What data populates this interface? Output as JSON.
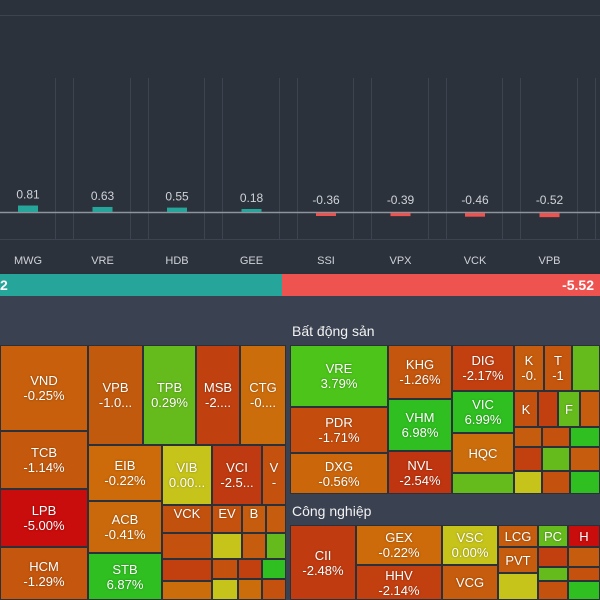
{
  "chart_data": {
    "type": "bar",
    "categories": [
      "MWG",
      "VRE",
      "HDB",
      "GEE",
      "SSI",
      "VPX",
      "VCK",
      "VPB"
    ],
    "values": [
      0.81,
      0.63,
      0.55,
      0.18,
      -0.36,
      -0.39,
      -0.46,
      -0.52
    ],
    "value_labels": [
      "0.81",
      "0.63",
      "0.55",
      "0.18",
      "-0.36",
      "-0.39",
      "-0.46",
      "-0.52"
    ],
    "title": "",
    "xlabel": "",
    "ylabel": ""
  },
  "impact_bar": {
    "positive_label": "2",
    "negative_label": "-5.52"
  },
  "colors": {
    "positive": "#26a69a",
    "negative": "#ef5350"
  },
  "sectors": {
    "left": {
      "title": ""
    },
    "real_estate": {
      "title": "Bất động sản"
    },
    "industrial": {
      "title": "Công nghiệp"
    }
  },
  "tiles": [
    {
      "sym": "VND",
      "chg": "-0.25%",
      "color": "#c75f0c"
    },
    {
      "sym": "VPB",
      "chg": "-1.0...",
      "color": "#c25a0e"
    },
    {
      "sym": "TPB",
      "chg": "0.29%",
      "color": "#66bb1c"
    },
    {
      "sym": "MSB",
      "chg": "-2....",
      "color": "#c04010"
    },
    {
      "sym": "CTG",
      "chg": "-0....",
      "color": "#cc6d0c"
    },
    {
      "sym": "TCB",
      "chg": "-1.14%",
      "color": "#c4590d"
    },
    {
      "sym": "EIB",
      "chg": "-0.22%",
      "color": "#cd6a0a"
    },
    {
      "sym": "VIB",
      "chg": "0.00...",
      "color": "#c6c41a"
    },
    {
      "sym": "VCI",
      "chg": "-2.5...",
      "color": "#bf3a10"
    },
    {
      "sym": "V",
      "chg": "-",
      "color": "#c4520e"
    },
    {
      "sym": "LPB",
      "chg": "-5.00%",
      "color": "#c90c0c"
    },
    {
      "sym": "ACB",
      "chg": "-0.41%",
      "color": "#ca690b"
    },
    {
      "sym": "VCK",
      "chg": "",
      "color": "#c2510e"
    },
    {
      "sym": "EV",
      "chg": "",
      "color": "#c4520e"
    },
    {
      "sym": "B",
      "chg": "",
      "color": "#c65c0d"
    },
    {
      "sym": "HCM",
      "chg": "-1.29%",
      "color": "#c4560d"
    },
    {
      "sym": "STB",
      "chg": "6.87%",
      "color": "#2fbf20"
    },
    {
      "sym": "VRE",
      "chg": "3.79%",
      "color": "#4cc41a"
    },
    {
      "sym": "KHG",
      "chg": "-1.26%",
      "color": "#c4560d"
    },
    {
      "sym": "DIG",
      "chg": "-2.17%",
      "color": "#c23f10"
    },
    {
      "sym": "K",
      "chg": "-0.",
      "color": "#c65c0d"
    },
    {
      "sym": "T",
      "chg": "-1",
      "color": "#c4560d"
    },
    {
      "sym": "PDR",
      "chg": "-1.71%",
      "color": "#c44d0e"
    },
    {
      "sym": "VHM",
      "chg": "6.98%",
      "color": "#2fbf20"
    },
    {
      "sym": "VIC",
      "chg": "6.99%",
      "color": "#2fbf20"
    },
    {
      "sym": "K",
      "chg": "",
      "color": "#c4520e"
    },
    {
      "sym": "F",
      "chg": "",
      "color": "#66bb1c"
    },
    {
      "sym": "DXG",
      "chg": "-0.56%",
      "color": "#cc660b"
    },
    {
      "sym": "NVL",
      "chg": "-2.54%",
      "color": "#bf3510"
    },
    {
      "sym": "HQC",
      "chg": "",
      "color": "#cc6d0c"
    },
    {
      "sym": "CII",
      "chg": "-2.48%",
      "color": "#c03b10"
    },
    {
      "sym": "GEX",
      "chg": "-0.22%",
      "color": "#cd6a0a"
    },
    {
      "sym": "VSC",
      "chg": "0.00%",
      "color": "#c6c41a"
    },
    {
      "sym": "LCG",
      "chg": "",
      "color": "#c65c0d"
    },
    {
      "sym": "PC",
      "chg": "",
      "color": "#66bb1c"
    },
    {
      "sym": "H",
      "chg": "",
      "color": "#c90c0c"
    },
    {
      "sym": "HHV",
      "chg": "-2.14%",
      "color": "#c23f10"
    },
    {
      "sym": "VCG",
      "chg": "",
      "color": "#c65c0d"
    },
    {
      "sym": "PVT",
      "chg": "",
      "color": "#c65c0d"
    }
  ]
}
